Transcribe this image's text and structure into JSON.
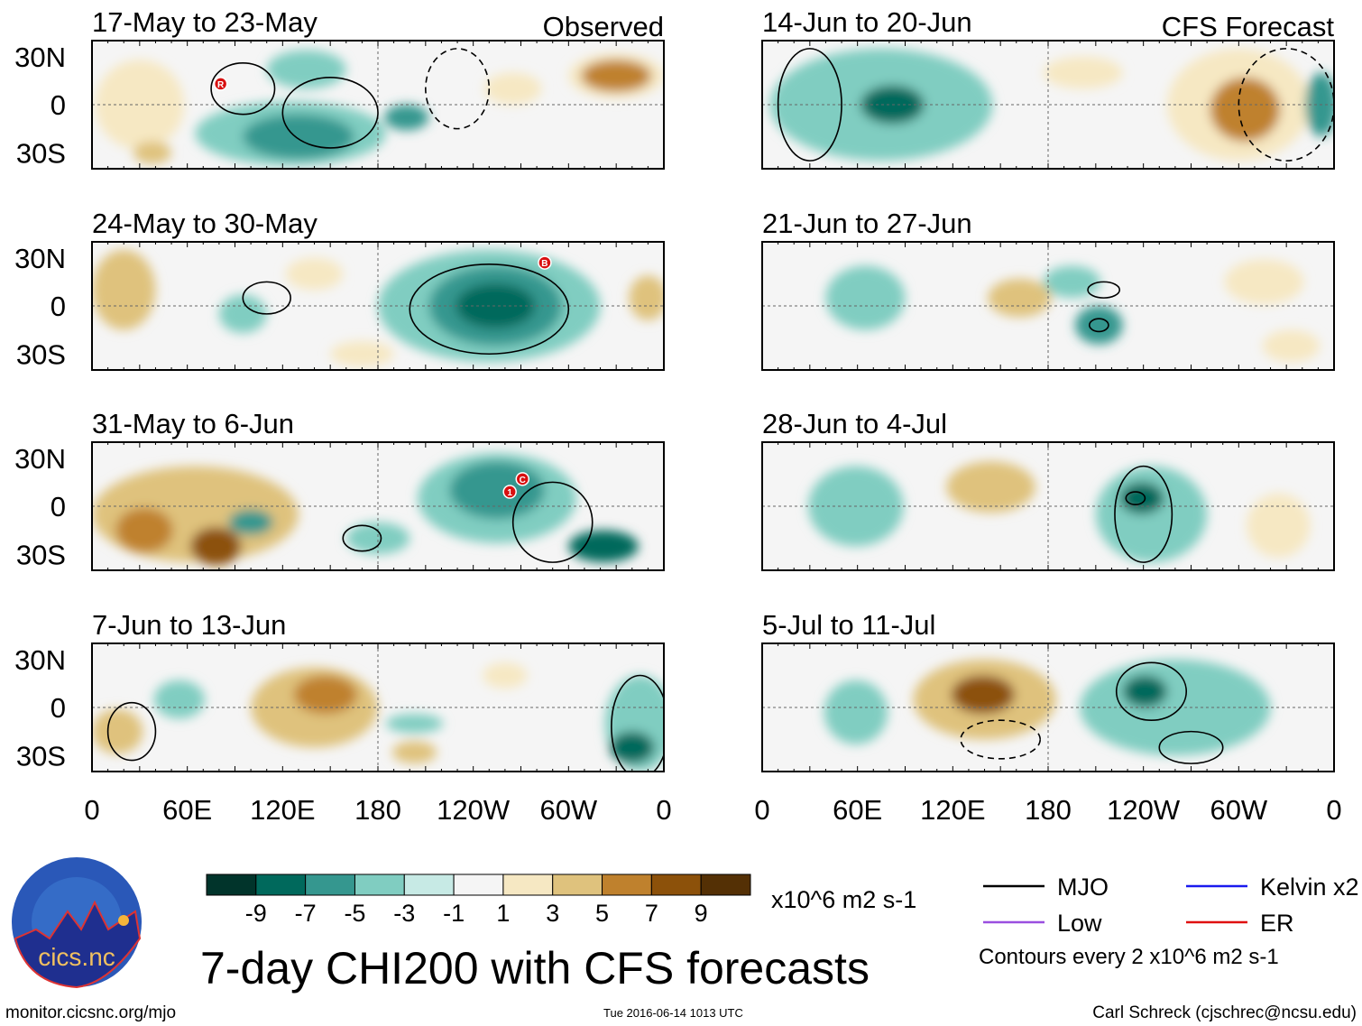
{
  "chart_data": {
    "type": "heatmap",
    "title": "7-day CHI200 with CFS forecasts",
    "units": "x10^6 m2 s-1",
    "xlim": [
      0,
      360
    ],
    "ylim": [
      -40,
      40
    ],
    "lon_ticks": [
      {
        "v": 0,
        "l": "0"
      },
      {
        "v": 60,
        "l": "60E"
      },
      {
        "v": 120,
        "l": "120E"
      },
      {
        "v": 180,
        "l": "180"
      },
      {
        "v": 240,
        "l": "120W"
      },
      {
        "v": 300,
        "l": "60W"
      },
      {
        "v": 360,
        "l": "0"
      }
    ],
    "lat_ticks": [
      {
        "v": 30,
        "l": "30N"
      },
      {
        "v": 0,
        "l": "0"
      },
      {
        "v": -30,
        "l": "30S"
      }
    ],
    "colorbar": {
      "levels": [
        "-9",
        "-7",
        "-5",
        "-3",
        "-1",
        "1",
        "3",
        "5",
        "7",
        "9"
      ],
      "colors": [
        "#01342b",
        "#00695c",
        "#35978f",
        "#80cdc1",
        "#c7eae5",
        "#f5f5f5",
        "#f6e8c3",
        "#dfc27d",
        "#bf812d",
        "#8c510a",
        "#543005"
      ]
    },
    "panels": [
      {
        "col": "observed",
        "label": "17-May to 23-May",
        "tag": "Observed",
        "anomalies": [
          [
            330,
            18,
            30,
            14,
            3
          ],
          [
            330,
            18,
            22,
            10,
            6
          ],
          [
            125,
            -18,
            60,
            20,
            -3
          ],
          [
            130,
            -20,
            35,
            14,
            -5
          ],
          [
            135,
            22,
            25,
            12,
            -3
          ],
          [
            198,
            -8,
            14,
            8,
            -5
          ],
          [
            30,
            0,
            28,
            28,
            3
          ],
          [
            38,
            -30,
            12,
            7,
            5
          ],
          [
            265,
            10,
            18,
            10,
            3
          ]
        ],
        "contours": [
          [
            95,
            10,
            20,
            16,
            0
          ],
          [
            150,
            -5,
            30,
            22,
            0
          ],
          [
            230,
            10,
            20,
            25,
            1
          ]
        ],
        "storms": [
          {
            "lon": 81,
            "lat": 13,
            "id": "R"
          }
        ]
      },
      {
        "col": "observed",
        "label": "24-May to 30-May",
        "anomalies": [
          [
            250,
            0,
            70,
            35,
            -3
          ],
          [
            254,
            0,
            42,
            25,
            -5
          ],
          [
            254,
            0,
            25,
            14,
            -8
          ],
          [
            20,
            10,
            20,
            25,
            5
          ],
          [
            350,
            5,
            12,
            14,
            5
          ],
          [
            95,
            -5,
            15,
            12,
            -4
          ],
          [
            140,
            20,
            18,
            10,
            3
          ],
          [
            170,
            -30,
            20,
            8,
            2
          ]
        ],
        "contours": [
          [
            250,
            -2,
            50,
            28,
            0
          ],
          [
            110,
            5,
            15,
            10,
            0
          ]
        ],
        "storms": [
          {
            "lon": 285,
            "lat": 27,
            "id": "B"
          }
        ]
      },
      {
        "col": "observed",
        "label": "31-May to 6-Jun",
        "anomalies": [
          [
            65,
            -5,
            65,
            30,
            4
          ],
          [
            33,
            -15,
            18,
            14,
            7
          ],
          [
            78,
            -25,
            16,
            12,
            9
          ],
          [
            255,
            5,
            50,
            28,
            -3
          ],
          [
            255,
            10,
            30,
            18,
            -5
          ],
          [
            322,
            -25,
            22,
            10,
            -8
          ],
          [
            100,
            -10,
            14,
            8,
            -5
          ],
          [
            180,
            -20,
            20,
            10,
            -3
          ]
        ],
        "contours": [
          [
            290,
            -10,
            25,
            25,
            0
          ],
          [
            170,
            -20,
            12,
            8,
            0
          ]
        ],
        "storms": [
          {
            "lon": 271,
            "lat": 17,
            "id": "C"
          },
          {
            "lon": 263,
            "lat": 9,
            "id": "1"
          }
        ]
      },
      {
        "col": "observed",
        "label": "7-Jun to 13-Jun",
        "anomalies": [
          [
            140,
            0,
            40,
            25,
            4
          ],
          [
            147,
            8,
            20,
            12,
            7
          ],
          [
            16,
            -15,
            16,
            14,
            5
          ],
          [
            203,
            -28,
            14,
            7,
            5
          ],
          [
            345,
            -10,
            22,
            30,
            -4
          ],
          [
            340,
            -25,
            14,
            10,
            -8
          ],
          [
            203,
            -10,
            18,
            6,
            -3
          ],
          [
            55,
            5,
            16,
            12,
            -3
          ],
          [
            260,
            20,
            14,
            8,
            2
          ]
        ],
        "contours": [
          [
            345,
            -12,
            18,
            32,
            0
          ],
          [
            25,
            -15,
            15,
            18,
            0
          ]
        ],
        "storms": []
      },
      {
        "col": "forecast",
        "label": "14-Jun to 20-Jun",
        "tag": "CFS Forecast",
        "anomalies": [
          [
            75,
            0,
            70,
            35,
            -4
          ],
          [
            82,
            0,
            20,
            12,
            -8
          ],
          [
            300,
            0,
            45,
            35,
            3
          ],
          [
            304,
            -3,
            22,
            20,
            6
          ],
          [
            202,
            20,
            25,
            10,
            2
          ],
          [
            352,
            0,
            10,
            20,
            -5
          ]
        ],
        "contours": [
          [
            330,
            0,
            30,
            35,
            1
          ],
          [
            30,
            0,
            20,
            35,
            0
          ]
        ],
        "storms": []
      },
      {
        "col": "forecast",
        "label": "21-Jun to 27-Jun",
        "anomalies": [
          [
            212,
            -12,
            15,
            12,
            -5
          ],
          [
            195,
            15,
            18,
            10,
            -3
          ],
          [
            65,
            5,
            25,
            20,
            -3
          ],
          [
            162,
            5,
            20,
            12,
            4
          ],
          [
            316,
            15,
            25,
            14,
            3
          ],
          [
            333,
            -25,
            18,
            10,
            3
          ]
        ],
        "contours": [
          [
            215,
            10,
            10,
            5,
            0
          ],
          [
            212,
            -12,
            6,
            4,
            0
          ]
        ],
        "storms": []
      },
      {
        "col": "forecast",
        "label": "28-Jun to 4-Jul",
        "anomalies": [
          [
            245,
            -5,
            35,
            30,
            -4
          ],
          [
            239,
            5,
            14,
            10,
            -8
          ],
          [
            144,
            12,
            28,
            16,
            4
          ],
          [
            59,
            0,
            30,
            25,
            -3
          ],
          [
            325,
            -12,
            20,
            20,
            2
          ]
        ],
        "contours": [
          [
            240,
            -5,
            18,
            30,
            0
          ],
          [
            235,
            5,
            6,
            4,
            0
          ]
        ],
        "storms": []
      },
      {
        "col": "forecast",
        "label": "5-Jul to 11-Jul",
        "anomalies": [
          [
            140,
            5,
            45,
            25,
            5
          ],
          [
            139,
            8,
            20,
            12,
            9
          ],
          [
            260,
            0,
            60,
            30,
            -3
          ],
          [
            241,
            10,
            14,
            10,
            -7
          ],
          [
            59,
            -3,
            20,
            20,
            -3
          ]
        ],
        "contours": [
          [
            245,
            10,
            22,
            18,
            0
          ],
          [
            150,
            -20,
            25,
            12,
            1
          ],
          [
            270,
            -25,
            20,
            10,
            0
          ]
        ],
        "storms": []
      }
    ]
  },
  "legend": {
    "items": [
      {
        "label": "MJO",
        "color": "#000000"
      },
      {
        "label": "Kelvin x2",
        "color": "#1a1aee"
      },
      {
        "label": "Low",
        "color": "#9a4fe0"
      },
      {
        "label": "ER",
        "color": "#e01010"
      }
    ],
    "contour_note": "Contours every 2 x10^6 m2 s-1"
  },
  "logo": {
    "text": "cics.nc",
    "ring_text": "Cooperative Institute for Climate and Satellites"
  },
  "footer": {
    "url": "monitor.cicsnc.org/mjo",
    "timestamp": "Tue 2016-06-14 1013 UTC",
    "credit": "Carl Schreck (cjschrec@ncsu.edu)"
  }
}
